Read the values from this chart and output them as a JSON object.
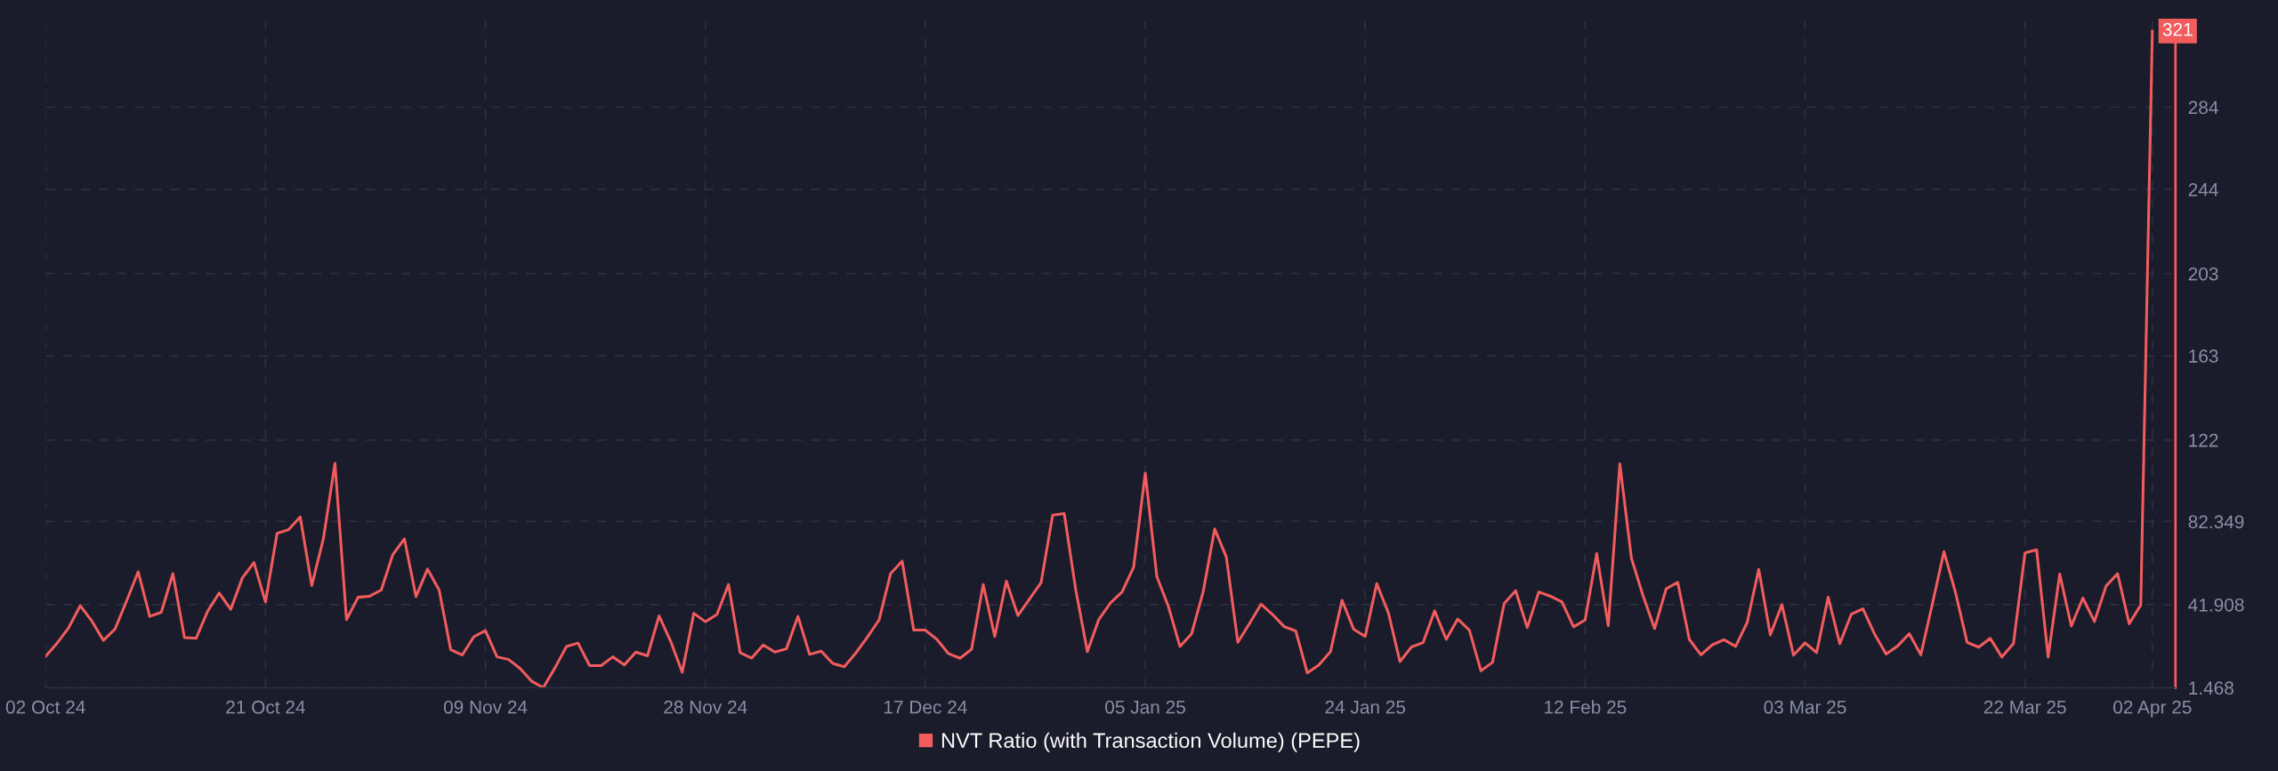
{
  "chart_data": {
    "type": "line",
    "x": [
      "2024-10-02",
      "2024-10-03",
      "2024-10-04",
      "2024-10-05",
      "2024-10-06",
      "2024-10-07",
      "2024-10-08",
      "2024-10-09",
      "2024-10-10",
      "2024-10-11",
      "2024-10-12",
      "2024-10-13",
      "2024-10-14",
      "2024-10-15",
      "2024-10-16",
      "2024-10-17",
      "2024-10-18",
      "2024-10-19",
      "2024-10-20",
      "2024-10-21",
      "2024-10-22",
      "2024-10-23",
      "2024-10-24",
      "2024-10-25",
      "2024-10-26",
      "2024-10-27",
      "2024-10-28",
      "2024-10-29",
      "2024-10-30",
      "2024-10-31",
      "2024-11-01",
      "2024-11-02",
      "2024-11-03",
      "2024-11-04",
      "2024-11-05",
      "2024-11-06",
      "2024-11-07",
      "2024-11-08",
      "2024-11-09",
      "2024-11-10",
      "2024-11-11",
      "2024-11-12",
      "2024-11-13",
      "2024-11-14",
      "2024-11-15",
      "2024-11-16",
      "2024-11-17",
      "2024-11-18",
      "2024-11-19",
      "2024-11-20",
      "2024-11-21",
      "2024-11-22",
      "2024-11-23",
      "2024-11-24",
      "2024-11-25",
      "2024-11-26",
      "2024-11-27",
      "2024-11-28",
      "2024-11-29",
      "2024-11-30",
      "2024-12-01",
      "2024-12-02",
      "2024-12-03",
      "2024-12-04",
      "2024-12-05",
      "2024-12-06",
      "2024-12-07",
      "2024-12-08",
      "2024-12-09",
      "2024-12-10",
      "2024-12-11",
      "2024-12-12",
      "2024-12-13",
      "2024-12-14",
      "2024-12-15",
      "2024-12-16",
      "2024-12-17",
      "2024-12-18",
      "2024-12-19",
      "2024-12-20",
      "2024-12-21",
      "2024-12-22",
      "2024-12-23",
      "2024-12-24",
      "2024-12-25",
      "2024-12-26",
      "2024-12-27",
      "2024-12-28",
      "2024-12-29",
      "2024-12-30",
      "2024-12-31",
      "2025-01-01",
      "2025-01-02",
      "2025-01-03",
      "2025-01-04",
      "2025-01-05",
      "2025-01-06",
      "2025-01-07",
      "2025-01-08",
      "2025-01-09",
      "2025-01-10",
      "2025-01-11",
      "2025-01-12",
      "2025-01-13",
      "2025-01-14",
      "2025-01-15",
      "2025-01-16",
      "2025-01-17",
      "2025-01-18",
      "2025-01-19",
      "2025-01-20",
      "2025-01-21",
      "2025-01-22",
      "2025-01-23",
      "2025-01-24",
      "2025-01-25",
      "2025-01-26",
      "2025-01-27",
      "2025-01-28",
      "2025-01-29",
      "2025-01-30",
      "2025-01-31",
      "2025-02-01",
      "2025-02-02",
      "2025-02-03",
      "2025-02-04",
      "2025-02-05",
      "2025-02-06",
      "2025-02-07",
      "2025-02-08",
      "2025-02-09",
      "2025-02-10",
      "2025-02-11",
      "2025-02-12",
      "2025-02-13",
      "2025-02-14",
      "2025-02-15",
      "2025-02-16",
      "2025-02-17",
      "2025-02-18",
      "2025-02-19",
      "2025-02-20",
      "2025-02-21",
      "2025-02-22",
      "2025-02-23",
      "2025-02-24",
      "2025-02-25",
      "2025-02-26",
      "2025-02-27",
      "2025-02-28",
      "2025-03-01",
      "2025-03-02",
      "2025-03-03",
      "2025-03-04",
      "2025-03-05",
      "2025-03-06",
      "2025-03-07",
      "2025-03-08",
      "2025-03-09",
      "2025-03-10",
      "2025-03-11",
      "2025-03-12",
      "2025-03-13",
      "2025-03-14",
      "2025-03-15",
      "2025-03-16",
      "2025-03-17",
      "2025-03-18",
      "2025-03-19",
      "2025-03-20",
      "2025-03-21",
      "2025-03-22",
      "2025-03-23",
      "2025-03-24",
      "2025-03-25",
      "2025-03-26",
      "2025-03-27",
      "2025-03-28",
      "2025-03-29",
      "2025-03-30",
      "2025-03-31",
      "2025-04-01",
      "2025-04-02"
    ],
    "series": [
      {
        "name": "NVT Ratio (with Transaction Volume) (PEPE)",
        "color": "#f25c5c",
        "values": [
          16.7,
          23.2,
          30.7,
          41.4,
          33.9,
          24.5,
          30.0,
          43.7,
          57.9,
          36.2,
          38.2,
          57.0,
          25.9,
          25.5,
          38.7,
          47.6,
          39.6,
          54.9,
          62.4,
          43.2,
          76.6,
          78.4,
          84.6,
          51.2,
          73.9,
          110.7,
          34.6,
          45.5,
          46.0,
          49.0,
          66.3,
          73.9,
          45.8,
          59.2,
          49.0,
          20.0,
          17.4,
          26.3,
          29.3,
          16.5,
          15.2,
          10.8,
          4.6,
          1.5,
          11.1,
          21.5,
          23.2,
          12.2,
          12.2,
          16.5,
          12.6,
          18.8,
          17.0,
          36.4,
          24.1,
          9.0,
          37.7,
          33.6,
          37.1,
          51.7,
          18.6,
          15.9,
          22.3,
          18.8,
          20.4,
          36.2,
          17.7,
          19.3,
          13.3,
          11.7,
          18.4,
          26.1,
          34.4,
          57.0,
          63.1,
          29.5,
          29.5,
          25.0,
          18.1,
          15.8,
          20.2,
          51.7,
          26.4,
          53.3,
          36.6,
          44.6,
          52.6,
          85.5,
          86.2,
          49.0,
          19.1,
          34.8,
          42.8,
          48.1,
          60.2,
          105.9,
          55.6,
          41.0,
          21.5,
          27.7,
          48.1,
          78.7,
          65.2,
          23.6,
          32.7,
          42.1,
          37.1,
          31.2,
          29.1,
          8.7,
          12.6,
          19.0,
          44.0,
          30.0,
          26.4,
          52.1,
          38.0,
          14.2,
          21.3,
          23.4,
          38.9,
          25.0,
          34.9,
          29.5,
          9.7,
          13.8,
          42.4,
          48.7,
          30.7,
          48.1,
          46.0,
          43.2,
          31.1,
          34.4,
          66.8,
          31.6,
          110.4,
          64.5,
          46.3,
          30.3,
          49.6,
          52.8,
          25.0,
          17.5,
          22.4,
          24.8,
          21.6,
          33.2,
          59.1,
          27.2,
          41.9,
          17.3,
          23.3,
          18.6,
          45.5,
          22.9,
          37.3,
          39.9,
          27.6,
          17.9,
          21.8,
          27.8,
          17.5,
          42.3,
          67.7,
          47.7,
          23.5,
          21.2,
          25.5,
          16.4,
          22.9,
          67.1,
          68.6,
          16.4,
          56.8,
          31.5,
          45.1,
          33.7,
          50.9,
          57.0,
          32.6,
          41.7,
          321
        ]
      }
    ],
    "xlim": [
      "2024-10-02",
      "2025-04-04"
    ],
    "xticks": [
      {
        "value": "2024-10-02",
        "label": "02 Oct 24"
      },
      {
        "value": "2024-10-21",
        "label": "21 Oct 24"
      },
      {
        "value": "2024-11-09",
        "label": "09 Nov 24"
      },
      {
        "value": "2024-11-28",
        "label": "28 Nov 24"
      },
      {
        "value": "2024-12-17",
        "label": "17 Dec 24"
      },
      {
        "value": "2025-01-05",
        "label": "05 Jan 25"
      },
      {
        "value": "2025-01-24",
        "label": "24 Jan 25"
      },
      {
        "value": "2025-02-12",
        "label": "12 Feb 25"
      },
      {
        "value": "2025-03-03",
        "label": "03 Mar 25"
      },
      {
        "value": "2025-03-22",
        "label": "22 Mar 25"
      },
      {
        "value": "2025-04-02",
        "label": "02 Apr 25"
      }
    ],
    "ylim": [
      1.468,
      326
    ],
    "yticks": [
      1.468,
      41.908,
      82.349,
      122,
      163,
      203,
      244,
      284
    ],
    "annotations": [
      {
        "text": "321",
        "x": "2025-04-02",
        "y": 321
      }
    ],
    "grid": true,
    "legend": "bottom",
    "marker": "none",
    "line_style": "solid"
  }
}
